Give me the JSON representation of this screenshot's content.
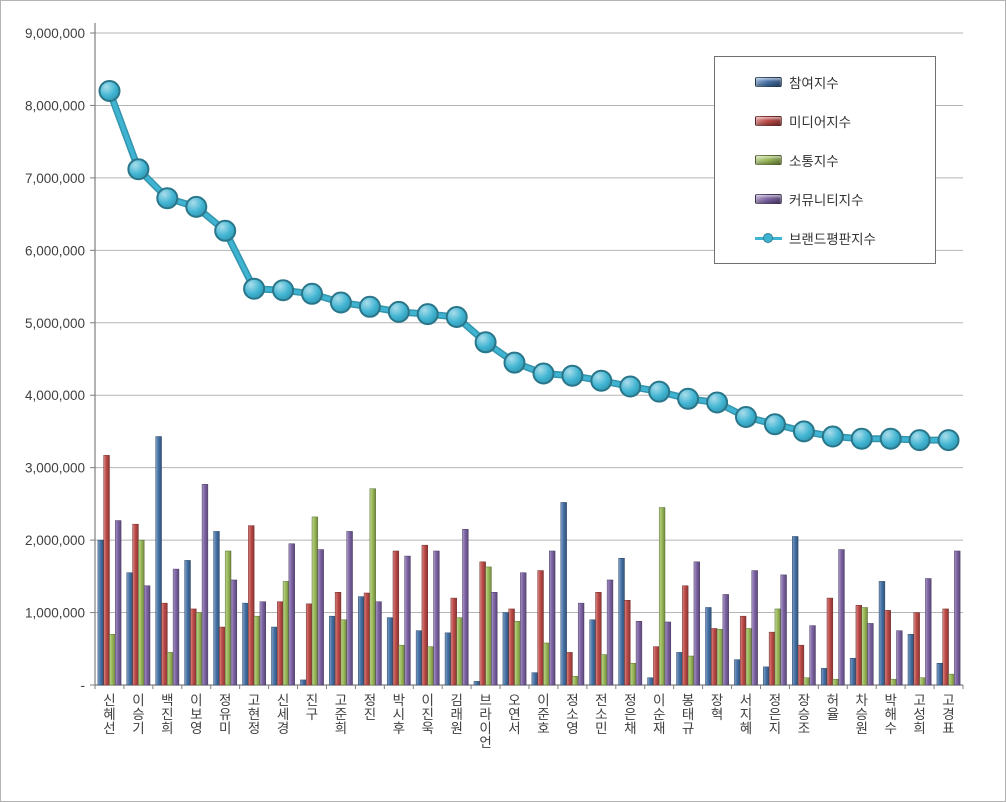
{
  "chart_data": {
    "type": "bar",
    "title": "",
    "xlabel": "",
    "ylabel": "",
    "ylim": [
      0,
      9000000
    ],
    "ytick_interval": 1000000,
    "ytick_labels": [
      "-",
      "1,000,000",
      "2,000,000",
      "3,000,000",
      "4,000,000",
      "5,000,000",
      "6,000,000",
      "7,000,000",
      "8,000,000",
      "9,000,000"
    ],
    "grid": true,
    "legend_position": "top-right",
    "categories": [
      "신혜선",
      "이승기",
      "백진희",
      "이보영",
      "정유미",
      "고현정",
      "신세경",
      "진구",
      "고준희",
      "정진",
      "박시후",
      "이진욱",
      "김래원",
      "브라이언",
      "오연서",
      "이준호",
      "정소영",
      "전소민",
      "정은채",
      "이순재",
      "봉태규",
      "장혁",
      "서지혜",
      "정은지",
      "장승조",
      "허율",
      "차승원",
      "박해수",
      "고성희",
      "고경표"
    ],
    "series": [
      {
        "name": "참여지수",
        "type": "bar",
        "color": "#4572a7",
        "values": [
          2000000,
          1550000,
          3430000,
          1720000,
          2120000,
          1130000,
          800000,
          70000,
          950000,
          1220000,
          930000,
          750000,
          720000,
          50000,
          1000000,
          170000,
          2520000,
          900000,
          1750000,
          100000,
          450000,
          1070000,
          350000,
          250000,
          2050000,
          230000,
          370000,
          1430000,
          700000,
          300000
        ]
      },
      {
        "name": "미디어지수",
        "type": "bar",
        "color": "#be4b48",
        "values": [
          3170000,
          2220000,
          1130000,
          1050000,
          800000,
          2200000,
          1150000,
          1120000,
          1280000,
          1270000,
          1850000,
          1930000,
          1200000,
          1700000,
          1050000,
          1580000,
          450000,
          1280000,
          1170000,
          530000,
          1370000,
          780000,
          950000,
          730000,
          550000,
          1200000,
          1100000,
          1030000,
          1000000,
          1050000
        ]
      },
      {
        "name": "소통지수",
        "type": "bar",
        "color": "#9bbb59",
        "values": [
          700000,
          2000000,
          450000,
          1000000,
          1850000,
          950000,
          1430000,
          2320000,
          900000,
          2710000,
          550000,
          530000,
          930000,
          1630000,
          880000,
          580000,
          120000,
          420000,
          300000,
          2450000,
          400000,
          770000,
          780000,
          1050000,
          100000,
          80000,
          1070000,
          80000,
          100000,
          150000
        ]
      },
      {
        "name": "커뮤니티지수",
        "type": "bar",
        "color": "#7d64a5",
        "values": [
          2270000,
          1370000,
          1600000,
          2770000,
          1450000,
          1150000,
          1950000,
          1870000,
          2120000,
          1150000,
          1780000,
          1850000,
          2150000,
          1280000,
          1550000,
          1850000,
          1130000,
          1450000,
          880000,
          870000,
          1700000,
          1250000,
          1580000,
          1520000,
          820000,
          1870000,
          850000,
          750000,
          1470000,
          1850000
        ]
      },
      {
        "name": "브랜드평판지수",
        "type": "line",
        "color": "#3fb4d2",
        "values": [
          8200000,
          7120000,
          6720000,
          6600000,
          6270000,
          5470000,
          5450000,
          5400000,
          5280000,
          5220000,
          5150000,
          5120000,
          5080000,
          4730000,
          4450000,
          4300000,
          4270000,
          4200000,
          4120000,
          4050000,
          3950000,
          3900000,
          3700000,
          3600000,
          3500000,
          3430000,
          3400000,
          3400000,
          3380000,
          3380000
        ]
      }
    ]
  }
}
